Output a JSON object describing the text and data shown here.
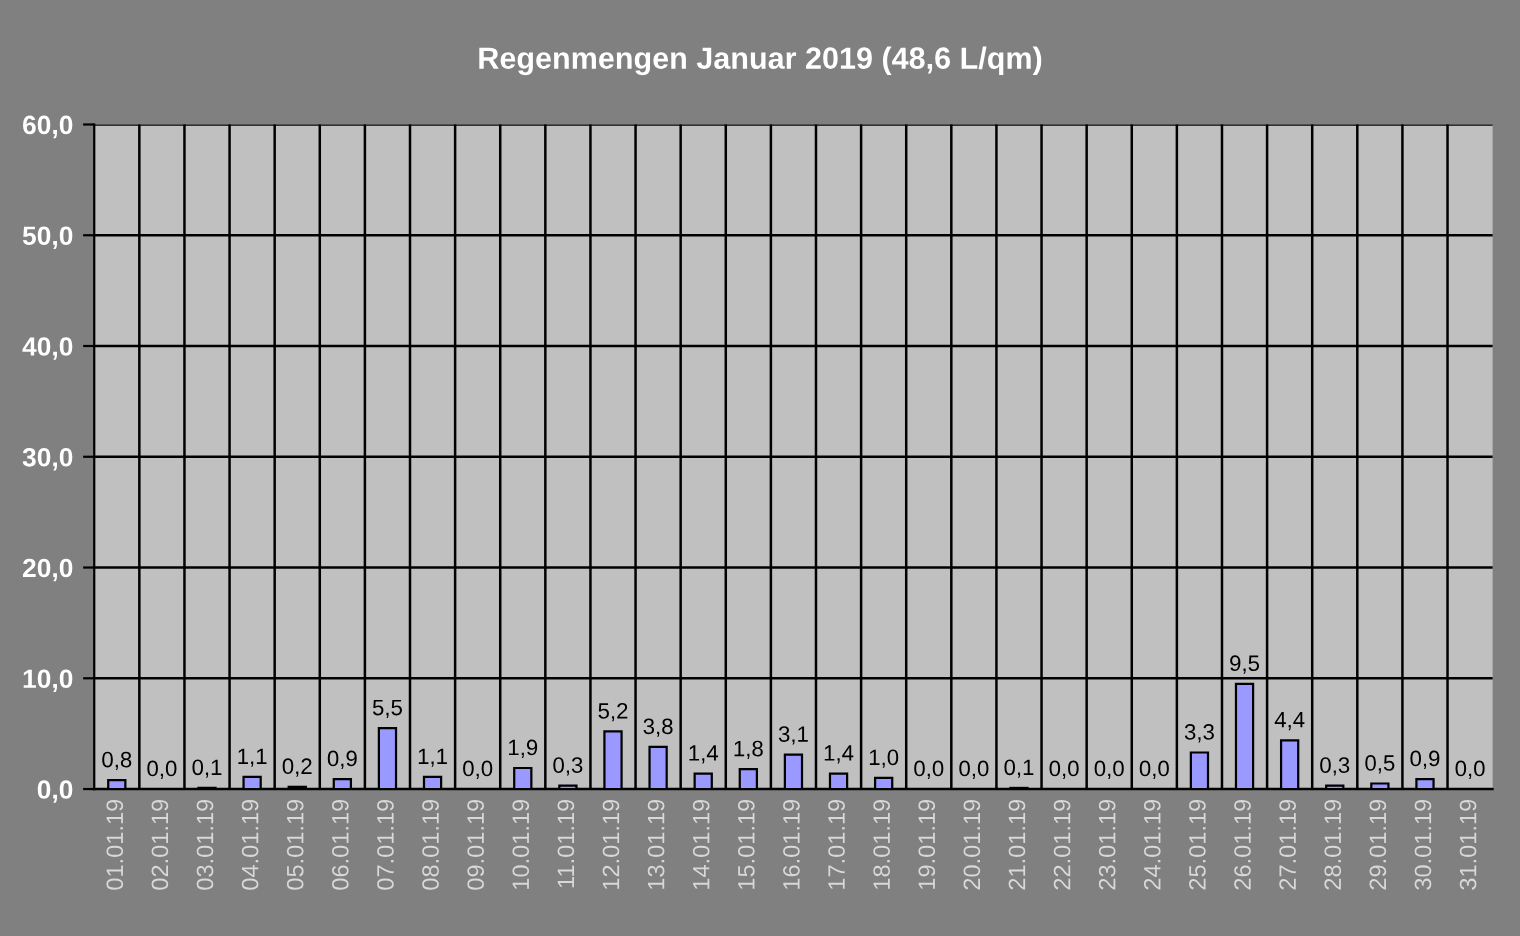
{
  "chart_data": {
    "type": "bar",
    "title": "Regenmengen Januar 2019 (48,6 L/qm)",
    "categories": [
      "01.01.19",
      "02.01.19",
      "03.01.19",
      "04.01.19",
      "05.01.19",
      "06.01.19",
      "07.01.19",
      "08.01.19",
      "09.01.19",
      "10.01.19",
      "11.01.19",
      "12.01.19",
      "13.01.19",
      "14.01.19",
      "15.01.19",
      "16.01.19",
      "17.01.19",
      "18.01.19",
      "19.01.19",
      "20.01.19",
      "21.01.19",
      "22.01.19",
      "23.01.19",
      "24.01.19",
      "25.01.19",
      "26.01.19",
      "27.01.19",
      "28.01.19",
      "29.01.19",
      "30.01.19",
      "31.01.19"
    ],
    "values": [
      0.8,
      0.0,
      0.1,
      1.1,
      0.2,
      0.9,
      5.5,
      1.1,
      0.0,
      1.9,
      0.3,
      5.2,
      3.8,
      1.4,
      1.8,
      3.1,
      1.4,
      1.0,
      0.0,
      0.0,
      0.1,
      0.0,
      0.0,
      0.0,
      3.3,
      9.5,
      4.4,
      0.3,
      0.5,
      0.9,
      0.0
    ],
    "value_labels": [
      "0,8",
      "0,0",
      "0,1",
      "1,1",
      "0,2",
      "0,9",
      "5,5",
      "1,1",
      "0,0",
      "1,9",
      "0,3",
      "5,2",
      "3,8",
      "1,4",
      "1,8",
      "3,1",
      "1,4",
      "1,0",
      "0,0",
      "0,0",
      "0,1",
      "0,0",
      "0,0",
      "0,0",
      "3,3",
      "9,5",
      "4,4",
      "0,3",
      "0,5",
      "0,9",
      "0,0"
    ],
    "color": "#9999ff",
    "ylim": [
      0,
      60
    ],
    "yticks": [
      {
        "value": 0,
        "label": "0,0"
      },
      {
        "value": 10,
        "label": "10,0"
      },
      {
        "value": 20,
        "label": "20,0"
      },
      {
        "value": 30,
        "label": "30,0"
      },
      {
        "value": 40,
        "label": "40,0"
      },
      {
        "value": 50,
        "label": "50,0"
      },
      {
        "value": 60,
        "label": "60,0"
      }
    ],
    "grid": true,
    "legend": false
  }
}
